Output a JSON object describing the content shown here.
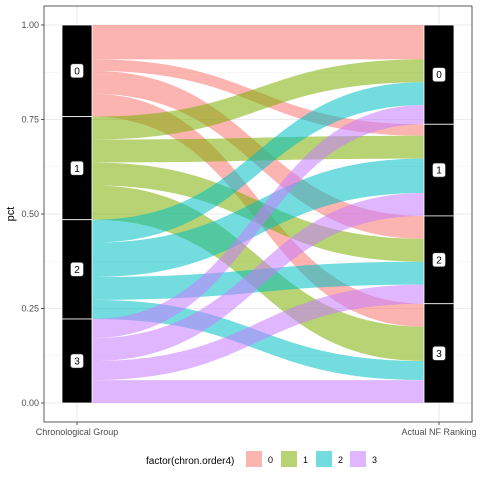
{
  "chart_data": {
    "type": "alluvial",
    "ylabel": "pct",
    "xlabel": "",
    "ylim": [
      0,
      1
    ],
    "yticks": [
      0.0,
      0.25,
      0.5,
      0.75,
      1.0
    ],
    "ytick_labels": [
      "0.00",
      "0.25",
      "0.50",
      "0.75",
      "1.00"
    ],
    "axes": [
      "Chronological Group",
      "Actual NF Ranking"
    ],
    "strata": [
      "0",
      "1",
      "2",
      "3"
    ],
    "legend": {
      "title": "factor(chron.order4)",
      "position": "bottom",
      "entries": [
        "0",
        "1",
        "2",
        "3"
      ]
    },
    "colors": [
      "#F8766D",
      "#7CAE00",
      "#00BFC4",
      "#C77CFF"
    ],
    "grid": true,
    "flows": [
      {
        "from": "0",
        "to": "0",
        "value": 0.09
      },
      {
        "from": "0",
        "to": "1",
        "value": 0.03
      },
      {
        "from": "0",
        "to": "2",
        "value": 0.06
      },
      {
        "from": "0",
        "to": "3",
        "value": 0.06
      },
      {
        "from": "1",
        "to": "0",
        "value": 0.06
      },
      {
        "from": "1",
        "to": "1",
        "value": 0.06
      },
      {
        "from": "1",
        "to": "2",
        "value": 0.06
      },
      {
        "from": "1",
        "to": "3",
        "value": 0.09
      },
      {
        "from": "2",
        "to": "0",
        "value": 0.06
      },
      {
        "from": "2",
        "to": "1",
        "value": 0.09
      },
      {
        "from": "2",
        "to": "2",
        "value": 0.06
      },
      {
        "from": "2",
        "to": "3",
        "value": 0.05
      },
      {
        "from": "3",
        "to": "0",
        "value": 0.05
      },
      {
        "from": "3",
        "to": "1",
        "value": 0.06
      },
      {
        "from": "3",
        "to": "2",
        "value": 0.05
      },
      {
        "from": "3",
        "to": "3",
        "value": 0.06
      }
    ]
  }
}
